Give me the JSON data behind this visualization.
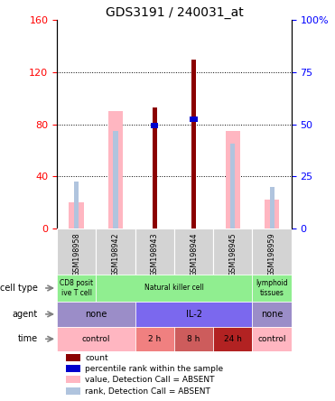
{
  "title": "GDS3191 / 240031_at",
  "samples": [
    "GSM198958",
    "GSM198942",
    "GSM198943",
    "GSM198944",
    "GSM198945",
    "GSM198959"
  ],
  "count_values": [
    null,
    null,
    93,
    130,
    null,
    null
  ],
  "percentile_values": [
    null,
    null,
    79,
    84,
    null,
    null
  ],
  "absent_value_bars": [
    20,
    90,
    null,
    null,
    75,
    22
  ],
  "absent_rank_bars": [
    36,
    75,
    null,
    null,
    65,
    32
  ],
  "left_ylim": [
    0,
    160
  ],
  "left_yticks": [
    0,
    40,
    80,
    120,
    160
  ],
  "right_ylim": [
    0,
    100
  ],
  "right_yticks": [
    0,
    25,
    50,
    75,
    100
  ],
  "color_count": "#8B0000",
  "color_percentile": "#0000CD",
  "color_absent_value": "#FFB6C1",
  "color_absent_rank": "#B0C4DE",
  "cell_type_data": [
    [
      0,
      1,
      "CD8 posit\nive T cell",
      "#90EE90"
    ],
    [
      1,
      5,
      "Natural killer cell",
      "#90EE90"
    ],
    [
      5,
      6,
      "lymphoid\ntissues",
      "#90EE90"
    ]
  ],
  "agent_data": [
    [
      0,
      2,
      "none",
      "#9B8DC8"
    ],
    [
      2,
      5,
      "IL-2",
      "#7B68EE"
    ],
    [
      5,
      6,
      "none",
      "#9B8DC8"
    ]
  ],
  "time_data": [
    [
      0,
      2,
      "control",
      "#FFB6C1"
    ],
    [
      2,
      3,
      "2 h",
      "#F08080"
    ],
    [
      3,
      4,
      "8 h",
      "#CD5C5C"
    ],
    [
      4,
      5,
      "24 h",
      "#B22222"
    ],
    [
      5,
      6,
      "control",
      "#FFB6C1"
    ]
  ],
  "legend_items": [
    {
      "color": "#8B0000",
      "label": "count"
    },
    {
      "color": "#0000CD",
      "label": "percentile rank within the sample"
    },
    {
      "color": "#FFB6C1",
      "label": "value, Detection Call = ABSENT"
    },
    {
      "color": "#B0C4DE",
      "label": "rank, Detection Call = ABSENT"
    }
  ]
}
